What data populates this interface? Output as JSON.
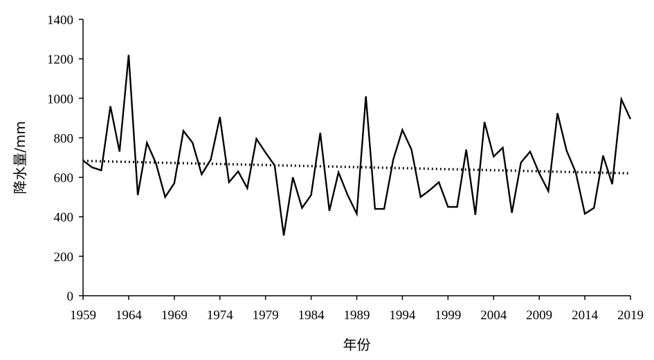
{
  "chart_data": {
    "type": "line",
    "title": "",
    "xlabel": "年份",
    "ylabel": "降水量/mm",
    "xlim": [
      1959,
      2019
    ],
    "ylim": [
      0,
      1400
    ],
    "x_ticks": [
      1959,
      1964,
      1969,
      1974,
      1979,
      1984,
      1989,
      1994,
      1999,
      2004,
      2009,
      2014,
      2019
    ],
    "y_ticks": [
      0,
      200,
      400,
      600,
      800,
      1000,
      1200,
      1400
    ],
    "grid": false,
    "legend": "none",
    "series": [
      {
        "style": "solid",
        "color": "#000000",
        "x": [
          1959,
          1960,
          1961,
          1962,
          1963,
          1964,
          1965,
          1966,
          1967,
          1968,
          1969,
          1970,
          1971,
          1972,
          1973,
          1974,
          1975,
          1976,
          1977,
          1978,
          1979,
          1980,
          1981,
          1982,
          1983,
          1984,
          1985,
          1986,
          1987,
          1988,
          1989,
          1990,
          1991,
          1992,
          1993,
          1994,
          1995,
          1996,
          1997,
          1998,
          1999,
          2000,
          2001,
          2002,
          2003,
          2004,
          2005,
          2006,
          2007,
          2008,
          2009,
          2010,
          2011,
          2012,
          2013,
          2014,
          2015,
          2016,
          2017,
          2018,
          2019
        ],
        "values": [
          685,
          650,
          635,
          960,
          730,
          1220,
          510,
          775,
          670,
          500,
          570,
          835,
          775,
          615,
          690,
          905,
          575,
          630,
          545,
          795,
          725,
          660,
          305,
          600,
          445,
          510,
          825,
          430,
          625,
          510,
          415,
          1010,
          440,
          440,
          690,
          840,
          740,
          500,
          535,
          575,
          450,
          450,
          740,
          410,
          880,
          705,
          750,
          420,
          675,
          730,
          620,
          530,
          925,
          735,
          625,
          415,
          445,
          710,
          565,
          995,
          895
        ]
      },
      {
        "style": "dotted",
        "color": "#000000",
        "x": [
          1959,
          2019
        ],
        "values": [
          683,
          620
        ]
      }
    ]
  }
}
